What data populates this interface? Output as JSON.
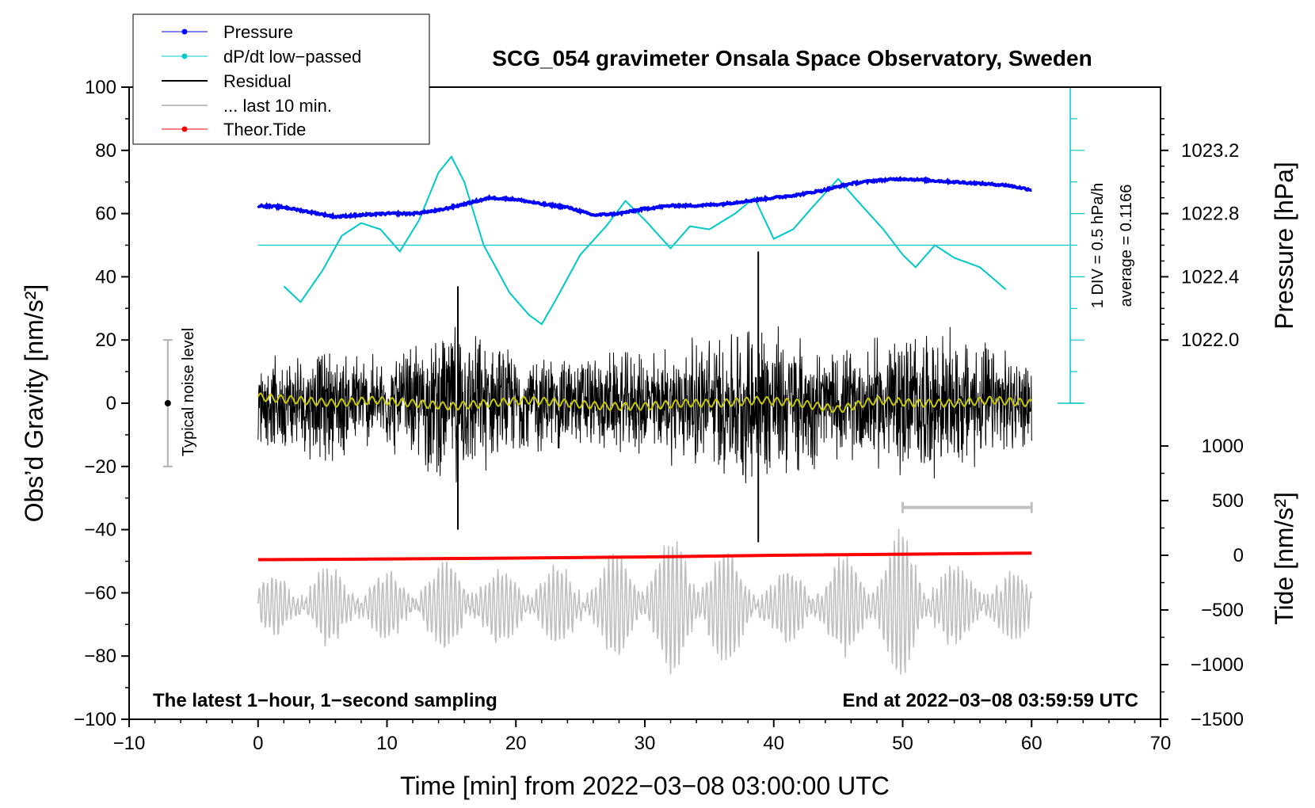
{
  "chart_data": {
    "type": "line",
    "title": "SCG_054 gravimeter Onsala Space Observatory, Sweden",
    "xlabel": "Time [min] from 2022−03−08 03:00:00 UTC",
    "ylabel_left": "Obs’d Gravity [nm/s²]",
    "ylabel_right_top": "Pressure [hPa]",
    "ylabel_right_bottom": "Tide [nm/s²]",
    "xlim": [
      -10,
      70
    ],
    "ylim": [
      -100,
      100
    ],
    "x_ticks": [
      "−10",
      "0",
      "10",
      "20",
      "30",
      "40",
      "50",
      "60",
      "70"
    ],
    "x_tick_values": [
      -10,
      0,
      10,
      20,
      30,
      40,
      50,
      60,
      70
    ],
    "y_ticks": [
      "100",
      "80",
      "60",
      "40",
      "20",
      "0",
      "−20",
      "−40",
      "−60",
      "−80",
      "−100"
    ],
    "y_tick_values": [
      100,
      80,
      60,
      40,
      20,
      0,
      -20,
      -40,
      -60,
      -80,
      -100
    ],
    "pressure_axis": {
      "ticks": [
        "1023.2",
        "1022.8",
        "1022.4",
        "1022.0"
      ],
      "tick_values": [
        1023.2,
        1022.8,
        1022.4,
        1022.0
      ],
      "min": 1021.7,
      "max": 1023.6
    },
    "tide_axis": {
      "ticks": [
        "1000",
        "500",
        "0",
        "−500",
        "−1000",
        "−1500"
      ],
      "tick_values": [
        1000,
        500,
        0,
        -500,
        -1000,
        -1500
      ],
      "min": -1500,
      "max": 1000
    },
    "legend": [
      {
        "label": "Pressure",
        "color": "#0000ff",
        "marker": true
      },
      {
        "label": "dP/dt low−passed",
        "color": "#00c8c8",
        "marker": true
      },
      {
        "label": "Residual",
        "color": "#000000",
        "marker": false
      },
      {
        "label": "... last 10 min.",
        "color": "#c0c0c0",
        "marker": false
      },
      {
        "label": "Theor.Tide",
        "color": "#ff0000",
        "marker": true
      }
    ],
    "series": [
      {
        "name": "Pressure",
        "color": "#0000ff",
        "axis": "pressure_hPa",
        "x": [
          0,
          2,
          4,
          6,
          8,
          10,
          12,
          14,
          16,
          18,
          20,
          22,
          24,
          26,
          28,
          30,
          32,
          34,
          36,
          38,
          40,
          42,
          44,
          46,
          48,
          50,
          52,
          54,
          56,
          58,
          60
        ],
        "values": [
          1022.85,
          1022.84,
          1022.81,
          1022.78,
          1022.79,
          1022.8,
          1022.8,
          1022.82,
          1022.86,
          1022.9,
          1022.89,
          1022.86,
          1022.84,
          1022.79,
          1022.8,
          1022.83,
          1022.85,
          1022.85,
          1022.86,
          1022.88,
          1022.9,
          1022.92,
          1022.95,
          1022.99,
          1023.01,
          1023.02,
          1023.01,
          1023.0,
          1022.99,
          1022.98,
          1022.95
        ]
      },
      {
        "name": "dP/dt low−passed",
        "color": "#00c8c8",
        "axis": "gravity_units_offset",
        "baseline": 50,
        "x": [
          2,
          3.3,
          5,
          6.5,
          8,
          9.5,
          11,
          12.5,
          14,
          15,
          16,
          17.5,
          19.5,
          21,
          22,
          23,
          25,
          27,
          28.5,
          30,
          32,
          33.5,
          35,
          37,
          38.5,
          40,
          41.5,
          43,
          45,
          46.5,
          48.5,
          50,
          51,
          52.5,
          54,
          56,
          58
        ],
        "values": [
          37,
          32,
          42,
          53,
          57,
          55,
          48,
          58,
          73,
          78,
          70,
          50,
          35,
          28,
          25,
          32,
          47,
          56,
          64,
          58,
          49,
          56,
          55,
          60,
          65,
          52,
          55,
          62,
          71,
          64,
          55,
          47,
          43,
          50,
          46,
          43,
          36
        ]
      },
      {
        "name": "Residual running mean",
        "color": "#c8c800",
        "axis": "gravity",
        "x": [
          0,
          3,
          6,
          9,
          12,
          15,
          18,
          21,
          24,
          27,
          30,
          33,
          36,
          39,
          42,
          45,
          48,
          51,
          54,
          57,
          60
        ],
        "values": [
          2,
          1,
          0,
          1,
          0,
          -1,
          0,
          1,
          0,
          -1,
          -1,
          0,
          0,
          1,
          0,
          -2,
          1,
          0,
          0,
          1,
          0
        ]
      },
      {
        "name": "Theor.Tide",
        "color": "#ff0000",
        "axis": "tide",
        "x": [
          0,
          10,
          20,
          30,
          40,
          50,
          60
        ],
        "values": [
          -40,
          -33,
          -25,
          -15,
          0,
          10,
          20
        ]
      }
    ],
    "residual_envelope": {
      "description_values": "approx. amplitude of the black residual trace per x (min)",
      "x": [
        0,
        5,
        10,
        15,
        20,
        25,
        30,
        35,
        39,
        45,
        50,
        55,
        60
      ],
      "amplitude": [
        14,
        20,
        16,
        28,
        18,
        17,
        18,
        24,
        30,
        18,
        26,
        24,
        14
      ],
      "spikes": [
        {
          "x": 15.5,
          "min": -40,
          "max": 37
        },
        {
          "x": 38.8,
          "min": -44,
          "max": 48
        }
      ]
    },
    "last10_trace": {
      "x_start": 0,
      "x_end": 60,
      "center": -64,
      "amplitude": [
        8,
        12,
        10,
        14,
        11,
        12,
        20,
        22,
        10,
        14,
        24,
        10,
        10
      ]
    },
    "last10_marker": {
      "x_start": 50,
      "x_end": 60,
      "y": -33
    },
    "noise_bar": {
      "x": -7,
      "center": 0,
      "half": 20,
      "label": "Typical noise level"
    },
    "pressure_scale": {
      "x": 63,
      "y_min": 0,
      "y_max": 100,
      "div_label": "1 DIV = 0.5 hPa/h",
      "avg_label": "average = 0.1166"
    },
    "annotations": {
      "left": "The latest 1−hour, 1−second sampling",
      "right": "End at 2022−03−08 03:59:59 UTC"
    }
  }
}
